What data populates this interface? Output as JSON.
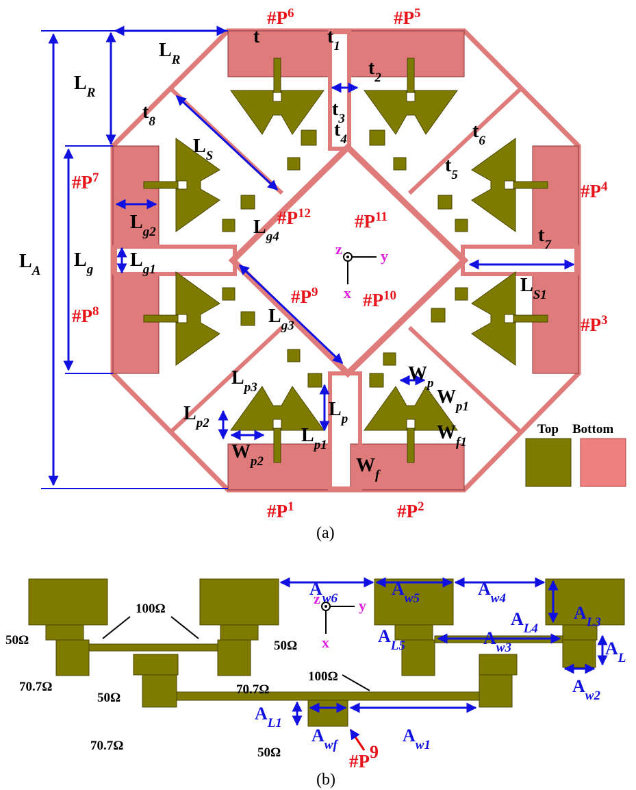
{
  "figure_a": {
    "dimension_labels": [
      {
        "base": "t"
      },
      {
        "base": "t",
        "sub": "1"
      },
      {
        "base": "t",
        "sub": "2"
      },
      {
        "base": "t",
        "sub": "3"
      },
      {
        "base": "t",
        "sub": "4"
      },
      {
        "base": "t",
        "sub": "5"
      },
      {
        "base": "t",
        "sub": "6"
      },
      {
        "base": "t",
        "sub": "7"
      },
      {
        "base": "t",
        "sub": "8"
      },
      {
        "base": "L",
        "sub": "R"
      },
      {
        "base": "L",
        "sub": "R"
      },
      {
        "base": "L",
        "sub": "S"
      },
      {
        "base": "L",
        "sub": "A"
      },
      {
        "base": "L",
        "sub": "g"
      },
      {
        "base": "L",
        "sub": "g1"
      },
      {
        "base": "L",
        "sub": "g2"
      },
      {
        "base": "L",
        "sub": "g3"
      },
      {
        "base": "L",
        "sub": "g4"
      },
      {
        "base": "L",
        "sub": "S1"
      },
      {
        "base": "L",
        "sub": "p3"
      },
      {
        "base": "L",
        "sub": "p2"
      },
      {
        "base": "L",
        "sub": "p"
      },
      {
        "base": "L",
        "sub": "p1"
      },
      {
        "base": "W",
        "sub": "p"
      },
      {
        "base": "W",
        "sub": "p1"
      },
      {
        "base": "W",
        "sub": "p2"
      },
      {
        "base": "W",
        "sub": "f1"
      },
      {
        "base": "W",
        "sub": "f"
      }
    ],
    "port_labels": [
      {
        "base": "#P",
        "sup": "1"
      },
      {
        "base": "#P",
        "sup": "2"
      },
      {
        "base": "#P",
        "sup": "3"
      },
      {
        "base": "#P",
        "sup": "4"
      },
      {
        "base": "#P",
        "sup": "5"
      },
      {
        "base": "#P",
        "sup": "6"
      },
      {
        "base": "#P",
        "sup": "7"
      },
      {
        "base": "#P",
        "sup": "8"
      },
      {
        "base": "#P",
        "sup": "9"
      },
      {
        "base": "#P",
        "sup": "10"
      },
      {
        "base": "#P",
        "sup": "11"
      },
      {
        "base": "#P",
        "sup": "12"
      }
    ],
    "axes": {
      "z": "z",
      "y": "y",
      "x": "x"
    },
    "legend": [
      "Top",
      "Bottom"
    ],
    "caption": "(a)"
  },
  "figure_b": {
    "dimension_labels": [
      {
        "base": "A",
        "sub": "w6"
      },
      {
        "base": "A",
        "sub": "w5"
      },
      {
        "base": "A",
        "sub": "w4"
      },
      {
        "base": "A",
        "sub": "L4"
      },
      {
        "base": "A",
        "sub": "L5"
      },
      {
        "base": "A",
        "sub": "w3"
      },
      {
        "base": "A",
        "sub": "L3"
      },
      {
        "base": "A",
        "sub": "L"
      },
      {
        "base": "A",
        "sub": "w2"
      },
      {
        "base": "A",
        "sub": "L1"
      },
      {
        "base": "A",
        "sub": "wf"
      },
      {
        "base": "A",
        "sub": "w1"
      }
    ],
    "impedance_labels": [
      "100Ω",
      "50Ω",
      "70.7Ω",
      "50Ω",
      "70.7Ω",
      "50Ω",
      "70.7Ω",
      "100Ω",
      "50Ω"
    ],
    "port_label": {
      "base": "#P",
      "sup": "9"
    },
    "axes": {
      "z": "z",
      "y": "y",
      "x": "x"
    },
    "caption": "(b)"
  }
}
